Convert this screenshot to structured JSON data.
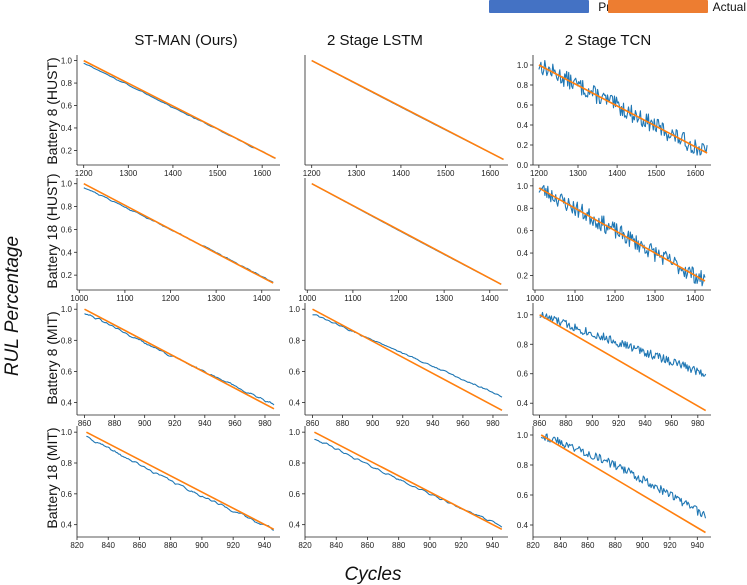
{
  "figure": {
    "ylabel": "RUL Percentage",
    "xlabel": "Cycles",
    "columns": [
      "ST-MAN (Ours)",
      "2 Stage LSTM",
      "2 Stage TCN"
    ],
    "rows": [
      "Battery 8 (HUST)",
      "Battery 18 (HUST)",
      "Battery 8 (MIT)",
      "Battery 18 (MIT)"
    ]
  },
  "legend": [
    {
      "label": "Predicted",
      "color": "#4472c4"
    },
    {
      "label": "Actual",
      "color": "#ed7d31"
    }
  ],
  "colors": {
    "predicted": "#1f77b4",
    "actual": "#ff7f0e"
  },
  "chart_data": [
    {
      "type": "line",
      "row": 0,
      "col": 0,
      "title": "ST-MAN (Ours)",
      "ylabel": "Battery 8 (HUST)",
      "xlim": [
        1185,
        1640
      ],
      "ylim": [
        0.07,
        1.05
      ],
      "xticks": [
        1200,
        1300,
        1400,
        1500,
        1600
      ],
      "yticks": [
        0.2,
        0.4,
        0.6,
        0.8,
        1.0
      ],
      "actual": {
        "x0": 1200,
        "x1": 1630,
        "y0": 1.0,
        "y1": 0.13
      },
      "predicted": {
        "x0": 1200,
        "x1": 1630,
        "y0": 0.98,
        "y1": 0.13,
        "noise": 0.008,
        "smooth": 2,
        "offset": 0.0,
        "seed": 11
      }
    },
    {
      "type": "line",
      "row": 0,
      "col": 1,
      "title": "2 Stage LSTM",
      "ylabel": "Battery 8 (HUST)",
      "xlim": [
        1185,
        1640
      ],
      "ylim": [
        0.07,
        1.05
      ],
      "xticks": [
        1200,
        1300,
        1400,
        1500,
        1600
      ],
      "yticks": [],
      "actual": {
        "x0": 1200,
        "x1": 1630,
        "y0": 1.0,
        "y1": 0.12
      },
      "predicted": {
        "x0": 1200,
        "x1": 1630,
        "y0": 1.0,
        "y1": 0.12,
        "noise": 0.0,
        "smooth": 1,
        "offset": -0.005,
        "seed": 12
      }
    },
    {
      "type": "line",
      "row": 0,
      "col": 2,
      "title": "2 Stage TCN",
      "ylabel": "Battery 8 (HUST)",
      "xlim": [
        1185,
        1640
      ],
      "ylim": [
        0.0,
        1.1
      ],
      "xticks": [
        1200,
        1300,
        1400,
        1500,
        1600
      ],
      "yticks": [
        0.0,
        0.2,
        0.4,
        0.6,
        0.8,
        1.0
      ],
      "actual": {
        "x0": 1200,
        "x1": 1630,
        "y0": 1.0,
        "y1": 0.12
      },
      "predicted": {
        "x0": 1200,
        "x1": 1630,
        "y0": 1.0,
        "y1": 0.12,
        "noise": 0.085,
        "smooth": 1,
        "offset": 0.0,
        "seed": 13
      }
    },
    {
      "type": "line",
      "row": 1,
      "col": 0,
      "title": "ST-MAN (Ours)",
      "ylabel": "Battery 18 (HUST)",
      "xlim": [
        995,
        1440
      ],
      "ylim": [
        0.07,
        1.05
      ],
      "xticks": [
        1000,
        1100,
        1200,
        1300,
        1400
      ],
      "yticks": [
        0.2,
        0.4,
        0.6,
        0.8,
        1.0
      ],
      "actual": {
        "x0": 1010,
        "x1": 1425,
        "y0": 1.0,
        "y1": 0.13
      },
      "predicted": {
        "x0": 1010,
        "x1": 1425,
        "y0": 0.97,
        "y1": 0.14,
        "noise": 0.01,
        "smooth": 2,
        "offset": 0.01,
        "seed": 21
      }
    },
    {
      "type": "line",
      "row": 1,
      "col": 1,
      "title": "2 Stage LSTM",
      "ylabel": "Battery 18 (HUST)",
      "xlim": [
        995,
        1440
      ],
      "ylim": [
        0.07,
        1.05
      ],
      "xticks": [
        1000,
        1100,
        1200,
        1300,
        1400
      ],
      "yticks": [],
      "actual": {
        "x0": 1010,
        "x1": 1425,
        "y0": 1.0,
        "y1": 0.12
      },
      "predicted": {
        "x0": 1010,
        "x1": 1425,
        "y0": 1.0,
        "y1": 0.12,
        "noise": 0.0,
        "smooth": 1,
        "offset": -0.005,
        "seed": 22
      }
    },
    {
      "type": "line",
      "row": 1,
      "col": 2,
      "title": "2 Stage TCN",
      "ylabel": "Battery 18 (HUST)",
      "xlim": [
        995,
        1440
      ],
      "ylim": [
        0.07,
        1.07
      ],
      "xticks": [
        1000,
        1100,
        1200,
        1300,
        1400
      ],
      "yticks": [
        0.2,
        0.4,
        0.6,
        0.8,
        1.0
      ],
      "actual": {
        "x0": 1010,
        "x1": 1425,
        "y0": 0.98,
        "y1": 0.15
      },
      "predicted": {
        "x0": 1010,
        "x1": 1425,
        "y0": 0.98,
        "y1": 0.15,
        "noise": 0.075,
        "smooth": 1,
        "offset": 0.0,
        "seed": 23
      }
    },
    {
      "type": "line",
      "row": 2,
      "col": 0,
      "title": "ST-MAN (Ours)",
      "ylabel": "Battery 8 (MIT)",
      "xlim": [
        855,
        990
      ],
      "ylim": [
        0.32,
        1.04
      ],
      "xticks": [
        860,
        880,
        900,
        920,
        940,
        960,
        980
      ],
      "yticks": [
        0.4,
        0.6,
        0.8,
        1.0
      ],
      "actual": {
        "x0": 860,
        "x1": 986,
        "y0": 1.0,
        "y1": 0.36
      },
      "predicted": {
        "x0": 860,
        "x1": 986,
        "y0": 0.98,
        "y1": 0.39,
        "noise": 0.012,
        "smooth": 2,
        "offset": -0.01,
        "seed": 31
      }
    },
    {
      "type": "line",
      "row": 2,
      "col": 1,
      "title": "2 Stage LSTM",
      "ylabel": "Battery 8 (MIT)",
      "xlim": [
        855,
        990
      ],
      "ylim": [
        0.32,
        1.04
      ],
      "xticks": [
        860,
        880,
        900,
        920,
        940,
        960,
        980
      ],
      "yticks": [
        0.4,
        0.6,
        0.8,
        1.0
      ],
      "actual": {
        "x0": 860,
        "x1": 986,
        "y0": 1.0,
        "y1": 0.35
      },
      "predicted": {
        "x0": 860,
        "x1": 986,
        "y0": 0.97,
        "y1": 0.44,
        "noise": 0.01,
        "smooth": 2,
        "offset": 0.0,
        "seed": 32
      }
    },
    {
      "type": "line",
      "row": 2,
      "col": 2,
      "title": "2 Stage TCN",
      "ylabel": "Battery 8 (MIT)",
      "xlim": [
        855,
        990
      ],
      "ylim": [
        0.32,
        1.08
      ],
      "xticks": [
        860,
        880,
        900,
        920,
        940,
        960,
        980
      ],
      "yticks": [
        0.4,
        0.6,
        0.8,
        1.0
      ],
      "actual": {
        "x0": 860,
        "x1": 986,
        "y0": 1.0,
        "y1": 0.35
      },
      "predicted": {
        "x0": 860,
        "x1": 986,
        "y0": 1.0,
        "y1": 0.6,
        "noise": 0.03,
        "smooth": 1,
        "offset": 0.0,
        "seed": 33
      }
    },
    {
      "type": "line",
      "row": 3,
      "col": 0,
      "title": "ST-MAN (Ours)",
      "ylabel": "Battery 18 (MIT)",
      "xlim": [
        820,
        950
      ],
      "ylim": [
        0.32,
        1.04
      ],
      "xticks": [
        820,
        840,
        860,
        880,
        900,
        920,
        940
      ],
      "yticks": [
        0.4,
        0.6,
        0.8,
        1.0
      ],
      "actual": {
        "x0": 826,
        "x1": 946,
        "y0": 1.0,
        "y1": 0.37
      },
      "predicted": {
        "x0": 826,
        "x1": 946,
        "y0": 0.97,
        "y1": 0.37,
        "noise": 0.012,
        "smooth": 2,
        "offset": -0.015,
        "seed": 41
      }
    },
    {
      "type": "line",
      "row": 3,
      "col": 1,
      "title": "2 Stage LSTM",
      "ylabel": "Battery 18 (MIT)",
      "xlim": [
        820,
        950
      ],
      "ylim": [
        0.32,
        1.04
      ],
      "xticks": [
        820,
        840,
        860,
        880,
        900,
        920,
        940
      ],
      "yticks": [
        0.4,
        0.6,
        0.8,
        1.0
      ],
      "actual": {
        "x0": 826,
        "x1": 946,
        "y0": 1.0,
        "y1": 0.37
      },
      "predicted": {
        "x0": 826,
        "x1": 946,
        "y0": 0.96,
        "y1": 0.39,
        "noise": 0.01,
        "smooth": 2,
        "offset": -0.01,
        "seed": 42
      }
    },
    {
      "type": "line",
      "row": 3,
      "col": 2,
      "title": "2 Stage TCN",
      "ylabel": "Battery 18 (MIT)",
      "xlim": [
        820,
        950
      ],
      "ylim": [
        0.32,
        1.06
      ],
      "xticks": [
        820,
        840,
        860,
        880,
        900,
        920,
        940
      ],
      "yticks": [
        0.4,
        0.6,
        0.8,
        1.0
      ],
      "actual": {
        "x0": 826,
        "x1": 946,
        "y0": 1.0,
        "y1": 0.35
      },
      "predicted": {
        "x0": 826,
        "x1": 946,
        "y0": 1.0,
        "y1": 0.46,
        "noise": 0.028,
        "smooth": 1,
        "offset": 0.04,
        "seed": 43
      }
    }
  ]
}
